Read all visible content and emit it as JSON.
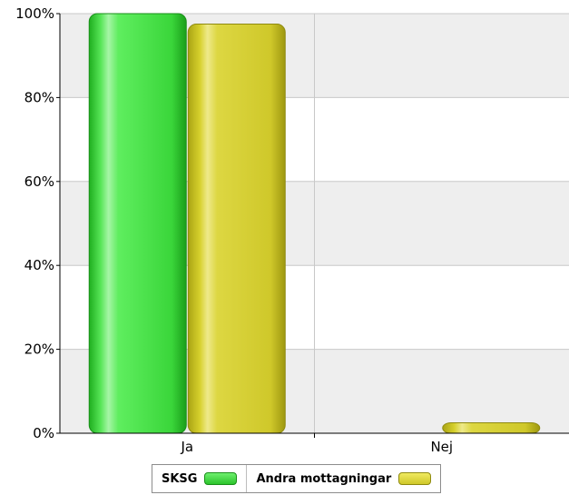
{
  "chart_data": {
    "type": "bar",
    "title": "",
    "xlabel": "",
    "ylabel": "",
    "categories": [
      "Ja",
      "Nej"
    ],
    "series": [
      {
        "name": "SKSG",
        "values": [
          100,
          0
        ],
        "color": "#3cd23c"
      },
      {
        "name": "Andra mottagningar",
        "values": [
          97.5,
          2.5
        ],
        "color": "#d8d22a"
      }
    ],
    "ylim": [
      0,
      100
    ],
    "yticks": [
      "0%",
      "20%",
      "40%",
      "60%",
      "80%",
      "100%"
    ],
    "grid": true,
    "legend_position": "bottom"
  }
}
